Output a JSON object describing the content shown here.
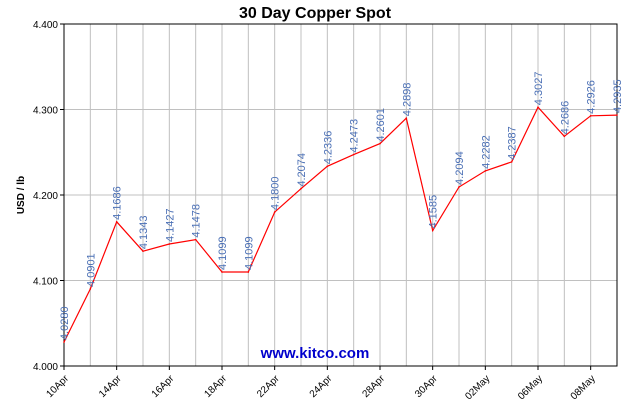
{
  "chart_data": {
    "type": "line",
    "title": "30 Day Copper Spot",
    "ylabel": "USD / lb",
    "xlabel": "",
    "ylim": [
      4.0,
      4.4
    ],
    "yticks": [
      "4.000",
      "4.100",
      "4.200",
      "4.300",
      "4.400"
    ],
    "grid": true,
    "watermark": "www.kitco.com",
    "colors": {
      "line": "#ff0000",
      "labels": "#4a6fb5",
      "grid": "#c0c0c0",
      "axis": "#000000"
    },
    "x_tick_labels": [
      "10Apr",
      "14Apr",
      "16Apr",
      "18Apr",
      "22Apr",
      "24Apr",
      "28Apr",
      "30Apr",
      "02May",
      "06May",
      "08May"
    ],
    "x_tick_positions": [
      0,
      2,
      4,
      6,
      8,
      10,
      12,
      14,
      16,
      18,
      20
    ],
    "series": [
      {
        "values": [
          4.028,
          4.0901,
          4.1686,
          4.1343,
          4.1427,
          4.1478,
          4.1099,
          4.1099,
          4.18,
          4.2074,
          4.2336,
          4.2473,
          4.2601,
          4.2898,
          4.1585,
          4.2094,
          4.2282,
          4.2387,
          4.3027,
          4.2686,
          4.2926,
          4.2935
        ],
        "labels": [
          "4.0280",
          "4.0901",
          "4.1686",
          "4.1343",
          "4.1427",
          "4.1478",
          "4.1099",
          "4.1099",
          "4.1800",
          "4.2074",
          "4.2336",
          "4.2473",
          "4.2601",
          "4.2898",
          "4.1585",
          "4.2094",
          "4.2282",
          "4.2387",
          "4.3027",
          "4.2686",
          "4.2926",
          "4.2935"
        ]
      }
    ]
  }
}
